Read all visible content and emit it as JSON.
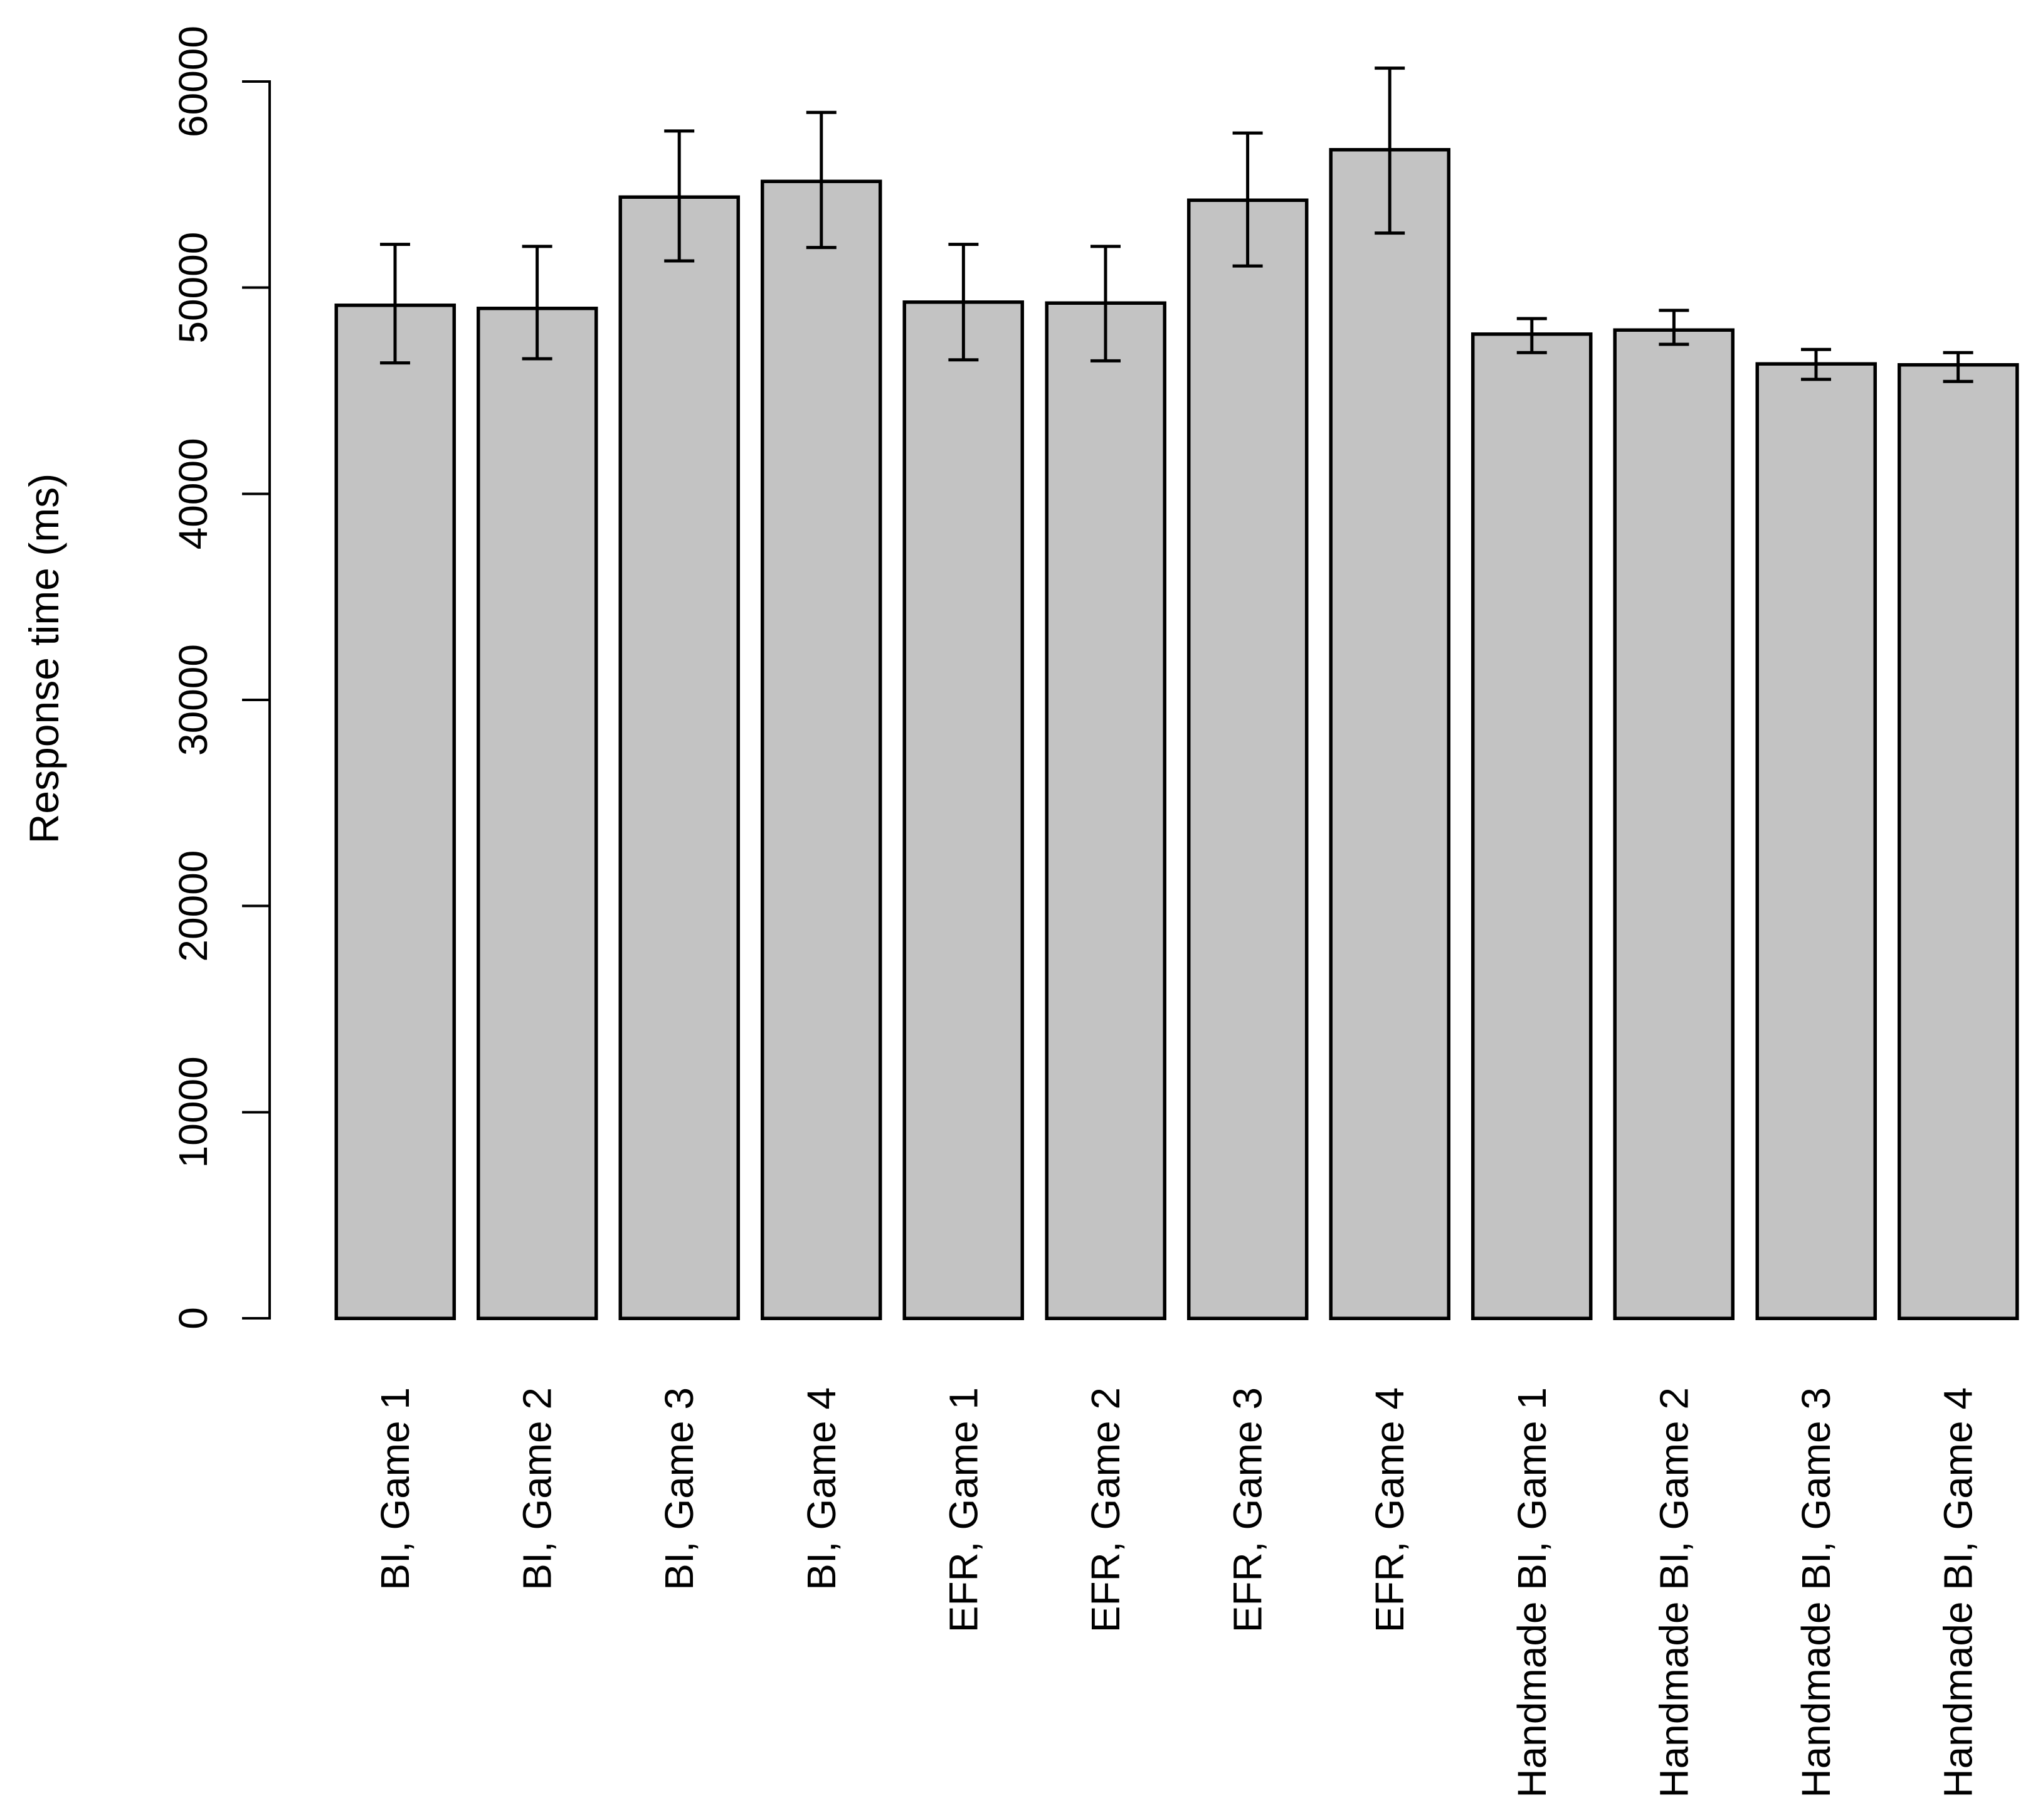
{
  "figure": {
    "description": "Barplot of mean response time in milliseconds with error bars for twelve conditions"
  },
  "chart_data": {
    "type": "bar",
    "title": "",
    "xlabel": "",
    "ylabel": "Response time (ms)",
    "categories": [
      "BI, Game 1",
      "BI, Game 2",
      "BI, Game 3",
      "BI, Game 4",
      "EFR, Game 1",
      "EFR, Game 2",
      "EFR, Game 3",
      "EFR, Game 4",
      "Handmade BI, Game 1",
      "Handmade BI, Game 2",
      "Handmade BI, Game 3",
      "Handmade BI, Game 4"
    ],
    "values": [
      49150,
      49000,
      54400,
      55150,
      49300,
      49250,
      54250,
      56700,
      47750,
      47950,
      46300,
      46250
    ],
    "error_lower": [
      46350,
      46550,
      51300,
      51950,
      46500,
      46450,
      51050,
      52650,
      46850,
      47250,
      45550,
      45450
    ],
    "error_upper": [
      52100,
      52000,
      57600,
      58500,
      52100,
      52000,
      57500,
      60650,
      48500,
      48900,
      47000,
      46850
    ],
    "yticks": [
      0,
      10000,
      20000,
      30000,
      40000,
      50000,
      60000
    ],
    "ytick_labels": [
      "0",
      "10000",
      "20000",
      "30000",
      "40000",
      "50000",
      "60000"
    ],
    "ylim": [
      0,
      60650
    ],
    "grid": false,
    "legend": null,
    "bar_fill_color": "#C3C3C3",
    "bar_border_color": "#000000",
    "error_bar_color": "#000000",
    "axis_color": "#000000",
    "text_color": "#000000",
    "background_color": "#ffffff"
  }
}
